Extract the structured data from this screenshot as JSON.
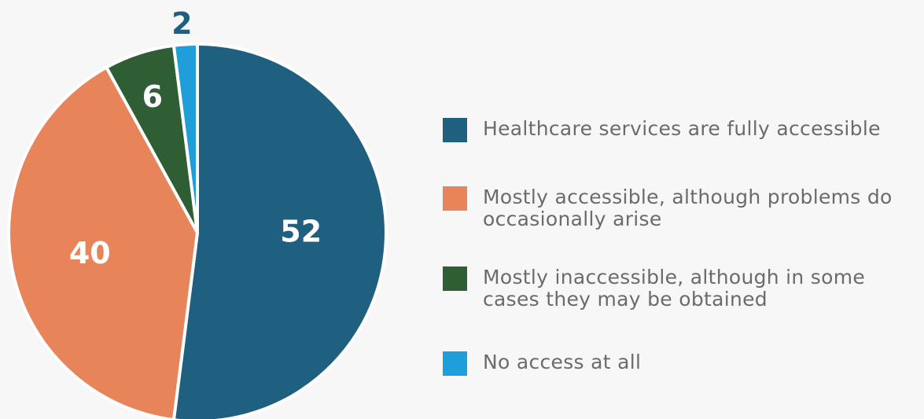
{
  "chart_data": {
    "type": "pie",
    "title": "",
    "categories": [
      "Healthcare services are fully accessible",
      "Mostly accessible, although problems do\noccasionally arise",
      "Mostly inaccessible, although in some\ncases they may be obtained",
      "No access at all"
    ],
    "values": [
      52,
      40,
      6,
      2
    ],
    "data_labels": [
      "52",
      "40",
      "6",
      "2"
    ],
    "colors": [
      "#1f5f80",
      "#e8845a",
      "#2f5e34",
      "#1e9fd9"
    ],
    "label_colors": [
      "#ffffff",
      "#ffffff",
      "#ffffff",
      "#1f5f80"
    ],
    "start": "12 o'clock",
    "direction": "clockwise",
    "legend_position": "right"
  }
}
